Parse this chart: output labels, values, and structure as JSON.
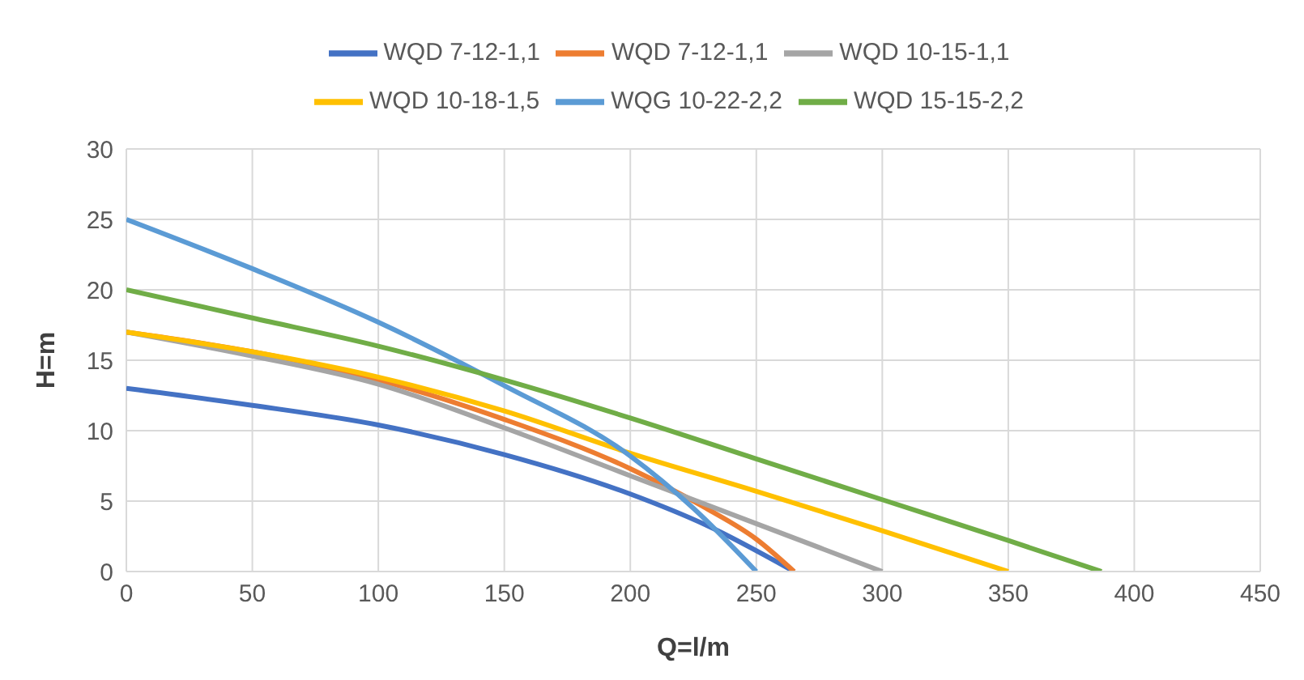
{
  "chart_data": {
    "type": "line",
    "xlabel": "Q=l/m",
    "ylabel": "H=m",
    "xlim": [
      0,
      450
    ],
    "xticks": [
      0,
      50,
      100,
      150,
      200,
      250,
      300,
      350,
      400,
      450
    ],
    "ylim": [
      0,
      30
    ],
    "yticks": [
      0,
      5,
      10,
      15,
      20,
      25,
      30
    ],
    "grid": true,
    "legend": "top",
    "marker": "none",
    "series": [
      {
        "name": "WQD 7-12-1,1",
        "color": "#4472c4",
        "x": [
          0,
          50,
          100,
          150,
          200,
          230,
          265
        ],
        "values": [
          13,
          11.8,
          10.4,
          8.3,
          5.5,
          3.3,
          0
        ]
      },
      {
        "name": "WQD 7-12-1,1",
        "color": "#ed7d31",
        "x": [
          0,
          50,
          100,
          150,
          200,
          230,
          250,
          265
        ],
        "values": [
          17,
          15.6,
          13.6,
          10.8,
          7.3,
          4.5,
          2.3,
          0
        ]
      },
      {
        "name": "WQD 10-15-1,1",
        "color": "#a5a5a5",
        "x": [
          0,
          50,
          100,
          150,
          200,
          250,
          300
        ],
        "values": [
          17,
          15.3,
          13.3,
          10.2,
          6.8,
          3.4,
          0
        ]
      },
      {
        "name": "WQD 10-18-1,5",
        "color": "#ffc000",
        "x": [
          0,
          50,
          100,
          150,
          200,
          250,
          300,
          350
        ],
        "values": [
          17,
          15.6,
          13.8,
          11.4,
          8.4,
          5.7,
          2.9,
          0
        ]
      },
      {
        "name": "WQG 10-22-2,2",
        "color": "#5b9bd5",
        "x": [
          0,
          50,
          100,
          150,
          200,
          225,
          250
        ],
        "values": [
          25,
          21.5,
          17.7,
          13.2,
          8.2,
          4.5,
          0
        ]
      },
      {
        "name": "WQD 15-15-2,2",
        "color": "#70ad47",
        "x": [
          0,
          50,
          100,
          150,
          200,
          250,
          300,
          350,
          387
        ],
        "values": [
          20,
          18,
          16,
          13.6,
          10.9,
          8,
          5.1,
          2.2,
          0
        ]
      }
    ]
  }
}
